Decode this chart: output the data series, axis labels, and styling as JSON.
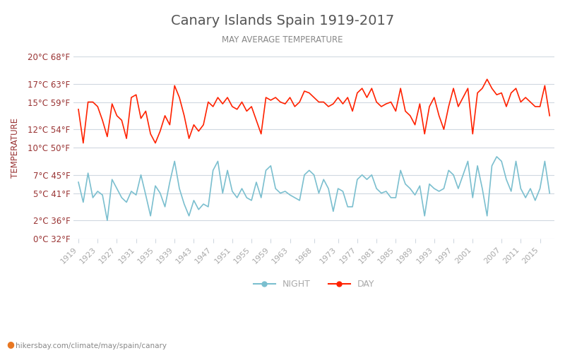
{
  "title": "Canary Islands Spain 1919-2017",
  "subtitle": "MAY AVERAGE TEMPERATURE",
  "xlabel": "",
  "ylabel": "TEMPERATURE",
  "watermark": "hikersbay.com/climate/may/spain/canary",
  "year_start": 1919,
  "year_end": 2017,
  "ylim": [
    0,
    20
  ],
  "yticks_c": [
    0,
    2,
    5,
    7,
    10,
    12,
    15,
    17,
    20
  ],
  "yticks_f": [
    32,
    36,
    41,
    45,
    50,
    54,
    59,
    63,
    68
  ],
  "xticks": [
    1919,
    1923,
    1927,
    1931,
    1935,
    1939,
    1943,
    1947,
    1951,
    1955,
    1959,
    1963,
    1968,
    1973,
    1977,
    1981,
    1985,
    1989,
    1993,
    1997,
    2001,
    2007,
    2011,
    2015
  ],
  "day_color": "#ff2200",
  "night_color": "#7bbfcf",
  "bg_color": "#ffffff",
  "grid_color": "#d0d8e0",
  "title_color": "#555555",
  "subtitle_color": "#888888",
  "label_color": "#993333",
  "tick_color": "#aaaaaa",
  "legend_night": "NIGHT",
  "legend_day": "DAY",
  "day_temps": [
    14.2,
    10.5,
    15.0,
    15.0,
    14.5,
    13.0,
    11.2,
    14.8,
    13.5,
    13.0,
    11.0,
    15.5,
    15.8,
    13.2,
    14.0,
    11.5,
    10.5,
    11.8,
    13.5,
    12.5,
    16.8,
    15.5,
    13.5,
    11.0,
    12.5,
    11.8,
    12.5,
    15.0,
    14.5,
    15.5,
    14.8,
    15.5,
    14.5,
    14.2,
    15.0,
    14.0,
    14.5,
    13.0,
    11.5,
    15.5,
    15.2,
    15.5,
    15.0,
    14.8,
    15.5,
    14.5,
    15.0,
    16.2,
    16.0,
    15.5,
    15.0,
    15.0,
    14.5,
    14.8,
    15.5,
    14.8,
    15.5,
    14.0,
    16.0,
    16.5,
    15.5,
    16.5,
    15.0,
    14.5,
    14.8,
    15.0,
    14.0,
    16.5,
    14.0,
    13.5,
    12.5,
    14.8,
    11.5,
    14.5,
    15.5,
    13.5,
    12.0,
    14.5,
    16.5,
    14.5,
    15.5,
    16.5,
    11.5,
    16.0,
    16.5,
    17.5,
    16.5,
    15.8,
    16.0,
    14.5,
    16.0,
    16.5,
    15.0,
    15.5,
    15.0,
    14.5,
    14.5,
    16.8,
    13.5
  ],
  "night_temps": [
    6.2,
    4.0,
    7.2,
    4.5,
    5.2,
    4.8,
    2.0,
    6.5,
    5.5,
    4.5,
    4.0,
    5.2,
    4.8,
    7.0,
    4.8,
    2.5,
    5.8,
    5.0,
    3.5,
    6.2,
    8.5,
    5.5,
    3.8,
    2.5,
    4.2,
    3.2,
    3.8,
    3.5,
    7.5,
    8.5,
    5.0,
    7.5,
    5.2,
    4.5,
    5.5,
    4.5,
    4.2,
    6.2,
    4.5,
    7.5,
    8.0,
    5.5,
    5.0,
    5.2,
    4.8,
    4.5,
    4.2,
    7.0,
    7.5,
    7.0,
    5.0,
    6.5,
    5.5,
    3.0,
    5.5,
    5.2,
    3.5,
    3.5,
    6.5,
    7.0,
    6.5,
    7.0,
    5.5,
    5.0,
    5.2,
    4.5,
    4.5,
    7.5,
    6.0,
    5.5,
    4.8,
    5.8,
    2.5,
    6.0,
    5.5,
    5.2,
    5.5,
    7.5,
    7.0,
    5.5,
    7.0,
    8.5,
    4.5,
    8.0,
    5.5,
    2.5,
    8.0,
    9.0,
    8.5,
    6.5,
    5.2,
    8.5,
    5.5,
    4.5,
    5.5,
    4.2,
    5.5,
    8.5,
    5.0
  ]
}
